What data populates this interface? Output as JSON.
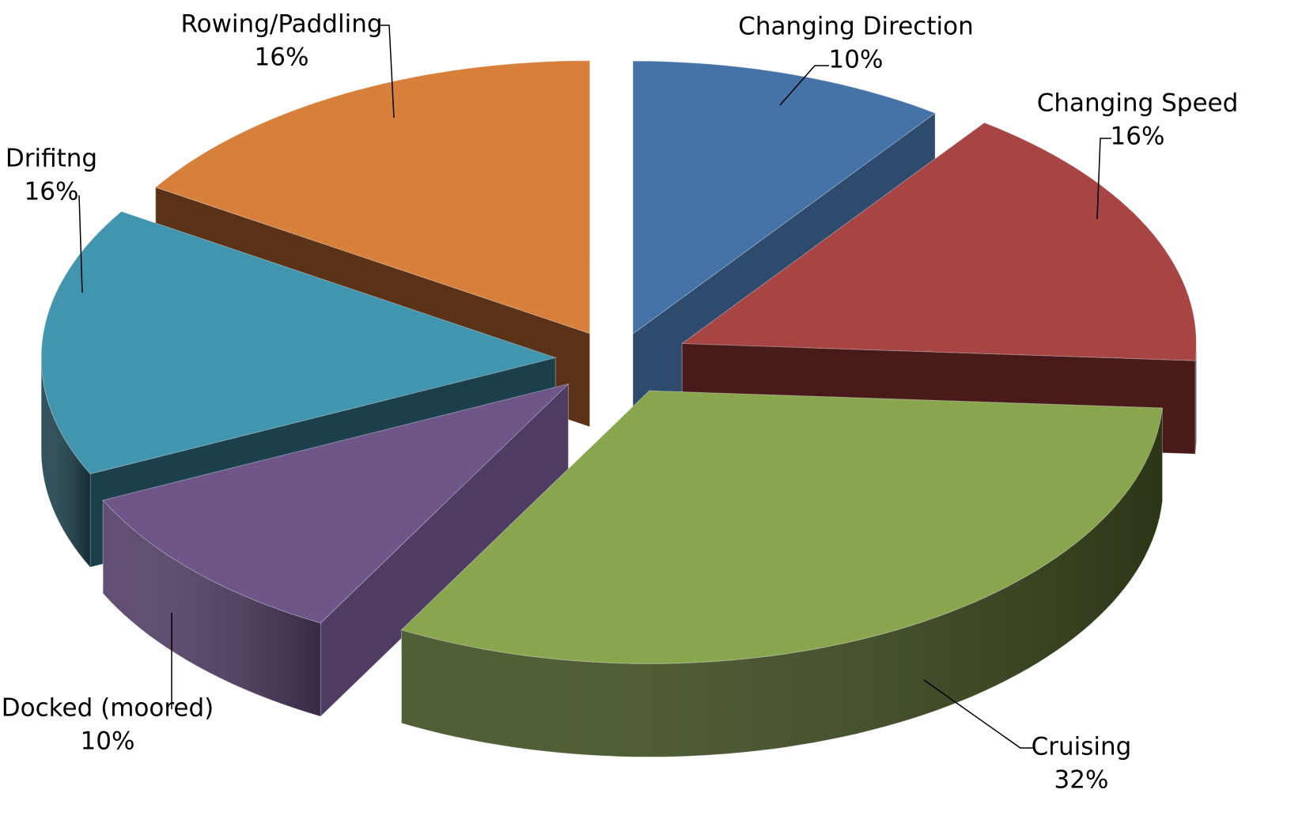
{
  "chart_data": {
    "type": "pie",
    "variant": "3d-exploded",
    "title": "",
    "slices": [
      {
        "label": "Changing Direction",
        "value": 10,
        "percent_label": "10%",
        "color": "#4572A7",
        "side_color": "#2E4B6E"
      },
      {
        "label": "Changing Speed",
        "value": 16,
        "percent_label": "16%",
        "color": "#A64543",
        "side_color": "#481B1A"
      },
      {
        "label": "Cruising",
        "value": 32,
        "percent_label": "32%",
        "color": "#89A54E",
        "side_color": "#3D4D1F"
      },
      {
        "label": "Docked (moored)",
        "value": 10,
        "percent_label": "10%",
        "color": "#6E5689",
        "side_color": "#4F3C63"
      },
      {
        "label": "Drifitng",
        "value": 16,
        "percent_label": "16%",
        "color": "#4195AE",
        "side_color": "#1B3F4B"
      },
      {
        "label": "Rowing/Paddling",
        "value": 16,
        "percent_label": "16%",
        "color": "#D6803C",
        "side_color": "#5A3217"
      }
    ],
    "legend": "none",
    "data_labels": "outside-with-leader-lines"
  }
}
